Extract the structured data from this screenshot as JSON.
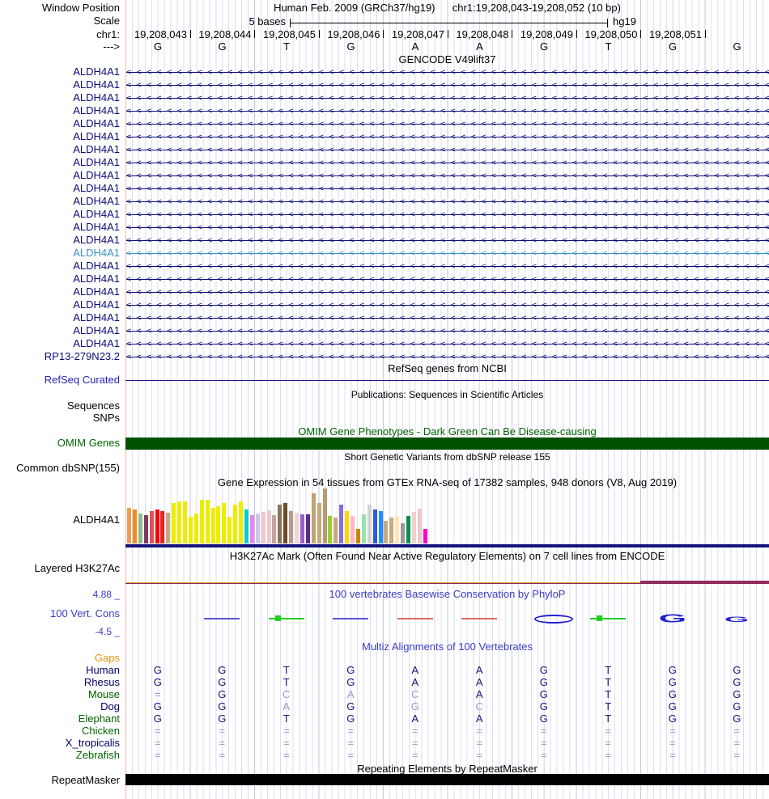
{
  "header": {
    "window_position_label": "Window Position",
    "assembly_title": "Human Feb. 2009 (GRCh37/hg19)",
    "position_title": "chr1:19,208,043-19,208,052 (10 bp)",
    "scale_label": "Scale",
    "scale_value": "5 bases",
    "assembly_short": "hg19",
    "chrom_label": "chr1:",
    "strand_label": "--->",
    "positions": [
      "19,208,043",
      "19,208,044",
      "19,208,045",
      "19,208,046",
      "19,208,047",
      "19,208,048",
      "19,208,049",
      "19,208,050",
      "19,208,051"
    ],
    "bases": [
      "G",
      "G",
      "T",
      "G",
      "A",
      "A",
      "G",
      "T",
      "G",
      "G"
    ]
  },
  "gencode": {
    "title": "GENCODE V49lift37",
    "normal_color": "#0c0c78",
    "highlight_color": "#3a93c5",
    "rows": [
      {
        "label": "ALDH4A1",
        "highlight": false
      },
      {
        "label": "ALDH4A1",
        "highlight": false
      },
      {
        "label": "ALDH4A1",
        "highlight": false
      },
      {
        "label": "ALDH4A1",
        "highlight": false
      },
      {
        "label": "ALDH4A1",
        "highlight": false
      },
      {
        "label": "ALDH4A1",
        "highlight": false
      },
      {
        "label": "ALDH4A1",
        "highlight": false
      },
      {
        "label": "ALDH4A1",
        "highlight": false
      },
      {
        "label": "ALDH4A1",
        "highlight": false
      },
      {
        "label": "ALDH4A1",
        "highlight": false
      },
      {
        "label": "ALDH4A1",
        "highlight": false
      },
      {
        "label": "ALDH4A1",
        "highlight": false
      },
      {
        "label": "ALDH4A1",
        "highlight": false
      },
      {
        "label": "ALDH4A1",
        "highlight": false
      },
      {
        "label": "ALDH4A1",
        "highlight": true
      },
      {
        "label": "ALDH4A1",
        "highlight": false
      },
      {
        "label": "ALDH4A1",
        "highlight": false
      },
      {
        "label": "ALDH4A1",
        "highlight": false
      },
      {
        "label": "ALDH4A1",
        "highlight": false
      },
      {
        "label": "ALDH4A1",
        "highlight": false
      },
      {
        "label": "ALDH4A1",
        "highlight": false
      },
      {
        "label": "ALDH4A1",
        "highlight": false
      },
      {
        "label": "RP13-279N23.2",
        "highlight": false
      }
    ]
  },
  "refseq": {
    "title": "RefSeq genes from NCBI",
    "label": "RefSeq Curated",
    "line_color": "#14147a"
  },
  "publications": {
    "title": "Publications: Sequences in Scientific Articles",
    "label_sequences": "Sequences",
    "label_snps": "SNPs"
  },
  "omim": {
    "title": "OMIM Gene Phenotypes - Dark Green Can Be Disease-causing",
    "label": "OMIM Genes",
    "bar_color": "#005000",
    "text_color": "#006400"
  },
  "dbsnp": {
    "title": "Short Genetic Variants from dbSNP release 155",
    "label": "Common dbSNP(155)"
  },
  "gtex": {
    "title": "Gene Expression in 54 tissues from GTEx RNA-seq of 17382 samples, 948 donors (V8, Aug 2019)",
    "gene_label": "ALDH4A1",
    "baseline_color": "#14147a",
    "chart_data": {
      "type": "bar",
      "title": "Gene Expression in 54 tissues from GTEx RNA-seq of 17382 samples, 948 donors (V8, Aug 2019)",
      "note": "54 GTEx tissue bars, unlabeled in image; heights in px estimated from screenshot",
      "values": [
        44,
        42,
        37,
        35,
        40,
        42,
        40,
        38,
        50,
        52,
        52,
        33,
        37,
        54,
        54,
        44,
        46,
        50,
        33,
        48,
        52,
        42,
        35,
        37,
        39,
        41,
        35,
        48,
        50,
        40,
        38,
        36,
        36,
        62,
        50,
        68,
        34,
        32,
        48,
        40,
        34,
        18,
        36,
        48,
        42,
        40,
        28,
        32,
        34,
        25,
        34,
        39,
        43,
        18
      ],
      "colors": [
        "#ED9F51",
        "#EF8C1F",
        "#8FBC8F",
        "#7D3A5E",
        "#E05252",
        "#FF0000",
        "#E82222",
        "#C9A87E",
        "#EDED00",
        "#EDED00",
        "#EDED00",
        "#EDED00",
        "#EDED00",
        "#EDED00",
        "#EDED00",
        "#EDED00",
        "#EDED00",
        "#EDED00",
        "#EDED00",
        "#EDED00",
        "#EDED00",
        "#00CED1",
        "#EE82EE",
        "#C9C9E8",
        "#F2C6CD",
        "#EFC9C9",
        "#C9A0A0",
        "#8B7355",
        "#6B4A2B",
        "#BB9988",
        "#EFD5D5",
        "#9A5FC4",
        "#5C2D82",
        "#C3A171",
        "#C9A87E",
        "#B59B72",
        "#9ACD32",
        "#C9A87E",
        "#8470D8",
        "#FFD700",
        "#FFB6C1",
        "#C8860B",
        "#99E2A9",
        "#D3D3D3",
        "#3356DD",
        "#1E90FF",
        "#C9A87E",
        "#C9A87E",
        "#FFE4B5",
        "#9A9A9A",
        "#0E8C50",
        "#EFD0D0",
        "#EFC8C8",
        "#FF00CC"
      ],
      "xlabel": "",
      "ylabel": "",
      "grid": false,
      "legend": false
    }
  },
  "h3k27ac": {
    "title": "H3K27Ac Mark (Often Found Near Active Regulatory Elements) on 7 cell lines from ENCODE",
    "label": "Layered H3K27Ac",
    "gold_color": "#d4b13f",
    "darkred_color": "#8b2252",
    "maroon_color": "#8f2d5f"
  },
  "phylop": {
    "title": "100 vertebrates Basewise Conservation by PhyloP",
    "label": "100 Vert. Cons",
    "max_label": "4.88 _",
    "min_label": "-4.5 _",
    "marks": [
      {
        "shape": "none",
        "color": ""
      },
      {
        "shape": "line",
        "color": "#5555cc"
      },
      {
        "shape": "line-dot",
        "color": "#22cc22"
      },
      {
        "shape": "line",
        "color": "#5555cc"
      },
      {
        "shape": "line",
        "color": "#dd6666"
      },
      {
        "shape": "line",
        "color": "#dd6666"
      },
      {
        "shape": "oval",
        "color": "#2222cc"
      },
      {
        "shape": "line-dot",
        "color": "#22cc22"
      },
      {
        "shape": "g-large",
        "color": "#2222cc"
      },
      {
        "shape": "g-small",
        "color": "#2222cc"
      }
    ]
  },
  "multiz": {
    "title": "Multiz Alignments of 100 Vertebrates",
    "gaps_label": "Gaps",
    "dark_letter_color": "#14147a",
    "light_letter_color": "#9a9acb",
    "species": [
      {
        "name": "Human",
        "name_color": "#000066",
        "bases": [
          "G",
          "G",
          "T",
          "G",
          "A",
          "A",
          "G",
          "T",
          "G",
          "G"
        ],
        "light": [
          0,
          0,
          0,
          0,
          0,
          0,
          0,
          0,
          0,
          0
        ]
      },
      {
        "name": "Rhesus",
        "name_color": "#000066",
        "bases": [
          "G",
          "G",
          "T",
          "G",
          "A",
          "A",
          "G",
          "T",
          "G",
          "G"
        ],
        "light": [
          0,
          0,
          0,
          0,
          0,
          0,
          0,
          0,
          0,
          0
        ]
      },
      {
        "name": "Mouse",
        "name_color": "#006400",
        "bases": [
          "=",
          "G",
          "C",
          "A",
          "C",
          "A",
          "G",
          "T",
          "G",
          "G"
        ],
        "light": [
          1,
          0,
          1,
          1,
          1,
          0,
          0,
          0,
          0,
          0
        ]
      },
      {
        "name": "Dog",
        "name_color": "#000066",
        "bases": [
          "G",
          "G",
          "A",
          "G",
          "G",
          "C",
          "G",
          "T",
          "G",
          "G"
        ],
        "light": [
          0,
          0,
          1,
          0,
          1,
          1,
          0,
          0,
          0,
          0
        ]
      },
      {
        "name": "Elephant",
        "name_color": "#006400",
        "bases": [
          "G",
          "G",
          "T",
          "G",
          "A",
          "A",
          "G",
          "T",
          "G",
          "G"
        ],
        "light": [
          0,
          0,
          0,
          0,
          0,
          0,
          0,
          0,
          0,
          0
        ]
      },
      {
        "name": "Chicken",
        "name_color": "#006400",
        "bases": [
          "=",
          "=",
          "=",
          "=",
          "=",
          "=",
          "=",
          "=",
          "=",
          "="
        ],
        "light": [
          1,
          1,
          1,
          1,
          1,
          1,
          1,
          1,
          1,
          1
        ]
      },
      {
        "name": "X_tropicalis",
        "name_color": "#000066",
        "bases": [
          "=",
          "=",
          "=",
          "=",
          "=",
          "=",
          "=",
          "=",
          "=",
          "="
        ],
        "light": [
          1,
          1,
          1,
          1,
          1,
          1,
          1,
          1,
          1,
          1
        ]
      },
      {
        "name": "Zebrafish",
        "name_color": "#006400",
        "bases": [
          "=",
          "=",
          "=",
          "=",
          "=",
          "=",
          "=",
          "=",
          "=",
          "="
        ],
        "light": [
          1,
          1,
          1,
          1,
          1,
          1,
          1,
          1,
          1,
          1
        ]
      }
    ]
  },
  "repeatmasker": {
    "title": "Repeating Elements by RepeatMasker",
    "label": "RepeatMasker",
    "bar_color": "#000000"
  }
}
